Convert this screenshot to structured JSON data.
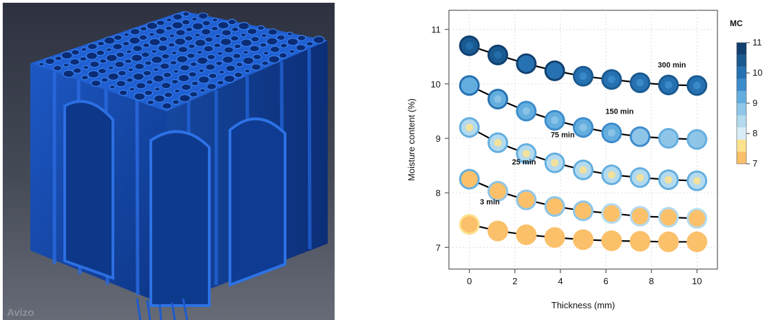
{
  "watermark": "Avizo",
  "colors": {
    "render_bg_top": "#2e3240",
    "render_bg_bottom": "#666b76",
    "cell_wall": "#1e5fd0",
    "cell_wall_dark": "#0d3a92",
    "lumen": "#0b2c74"
  },
  "chart_data": {
    "type": "scatter",
    "xlabel": "Thickness (mm)",
    "ylabel": "Moisture content (%)",
    "xlim": [
      -0.9,
      10.9
    ],
    "ylim": [
      6.6,
      11.35
    ],
    "xticks": [
      "0",
      "2",
      "4",
      "6",
      "8",
      "10"
    ],
    "yticks": [
      "7",
      "8",
      "9",
      "10",
      "11"
    ],
    "grid": true,
    "x": [
      0,
      1.25,
      2.5,
      3.75,
      5,
      6.25,
      7.5,
      8.75,
      10
    ],
    "series": [
      {
        "name": "3 min",
        "values": [
          7.42,
          7.3,
          7.23,
          7.18,
          7.14,
          7.12,
          7.11,
          7.1,
          7.1
        ],
        "outer_mc": [
          7.25,
          7.2,
          7.15,
          7.12,
          7.1,
          7.08,
          7.06,
          7.05,
          7.05
        ],
        "inner_mc": [
          7.2,
          7.1,
          7.05,
          7.0,
          7.0,
          7.0,
          7.0,
          7.0,
          7.0
        ],
        "rim_mc": [
          7.5,
          7.35,
          7.3,
          7.25,
          7.2,
          7.15,
          7.12,
          7.1,
          7.1
        ]
      },
      {
        "name": "25 min",
        "values": [
          8.25,
          8.03,
          7.87,
          7.75,
          7.67,
          7.62,
          7.57,
          7.55,
          7.53
        ],
        "outer_mc": [
          7.3,
          7.25,
          7.2,
          7.15,
          7.12,
          7.1,
          7.08,
          7.07,
          7.06
        ],
        "inner_mc": [
          7.2,
          7.15,
          7.1,
          7.05,
          7.05,
          7.02,
          7.0,
          7.0,
          7.0
        ],
        "rim_mc": [
          9.0,
          8.9,
          8.8,
          8.7,
          8.65,
          8.6,
          8.55,
          8.5,
          8.5
        ]
      },
      {
        "name": "75 min",
        "values": [
          9.2,
          8.92,
          8.72,
          8.55,
          8.42,
          8.33,
          8.28,
          8.24,
          8.22
        ],
        "outer_mc": [
          8.4,
          8.4,
          8.45,
          8.45,
          8.5,
          8.5,
          8.5,
          8.5,
          8.5
        ],
        "inner_mc": [
          7.6,
          7.7,
          7.75,
          7.7,
          7.65,
          7.6,
          7.6,
          7.6,
          7.55
        ],
        "rim_mc": [
          9.3,
          9.2,
          9.2,
          9.2,
          9.15,
          9.1,
          9.1,
          9.1,
          9.1
        ]
      },
      {
        "name": "150 min",
        "values": [
          9.97,
          9.72,
          9.5,
          9.33,
          9.2,
          9.1,
          9.03,
          9.0,
          8.98
        ],
        "outer_mc": [
          9.3,
          9.3,
          9.2,
          9.1,
          9.05,
          9.0,
          8.95,
          8.9,
          8.9
        ],
        "inner_mc": [
          9.0,
          8.9,
          8.85,
          8.8,
          8.75,
          8.7,
          8.7,
          8.65,
          8.65
        ],
        "rim_mc": [
          10.0,
          9.8,
          9.7,
          9.6,
          9.5,
          9.4,
          9.4,
          9.35,
          9.35
        ]
      },
      {
        "name": "300 min",
        "values": [
          10.7,
          10.53,
          10.37,
          10.24,
          10.14,
          10.08,
          10.02,
          9.98,
          9.97
        ],
        "outer_mc": [
          10.5,
          10.3,
          10.15,
          10.05,
          10.0,
          9.95,
          9.9,
          9.85,
          9.85
        ],
        "inner_mc": [
          10.2,
          10.0,
          9.9,
          9.8,
          9.75,
          9.7,
          9.65,
          9.6,
          9.6
        ],
        "rim_mc": [
          10.9,
          10.8,
          10.7,
          10.6,
          10.5,
          10.45,
          10.4,
          10.35,
          10.35
        ]
      }
    ],
    "annotations": [
      "3 min",
      "25 min",
      "75 min",
      "150 min",
      "300 min"
    ],
    "legend": {
      "title": "MC",
      "placement": "right",
      "ticks": [
        "7",
        "8",
        "9",
        "10",
        "11"
      ],
      "range": [
        7,
        11
      ],
      "colors": [
        "#fbc06a",
        "#fde28d",
        "#d8ecf5",
        "#b3daee",
        "#8ec5e8",
        "#64aedf",
        "#3d8ccc",
        "#2671b1",
        "#1a5a90",
        "#114070"
      ]
    }
  }
}
